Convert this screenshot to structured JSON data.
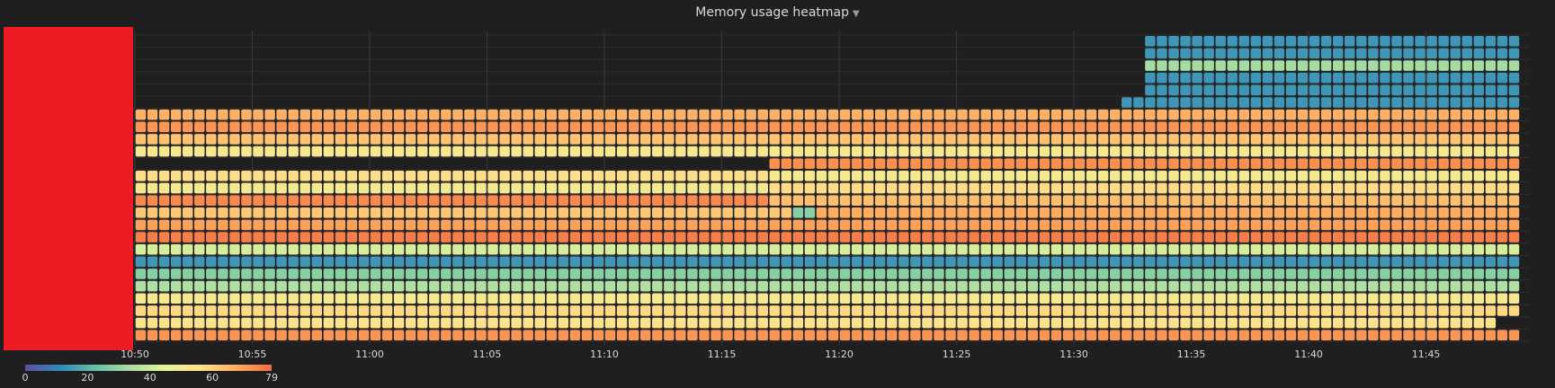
{
  "panel": {
    "title": "Memory usage heatmap",
    "caret_icon": "caret-down-icon"
  },
  "chart_data": {
    "type": "heatmap",
    "title": "Memory usage heatmap",
    "x_tick_labels": [
      "10:50",
      "10:55",
      "11:00",
      "11:05",
      "11:10",
      "11:15",
      "11:20",
      "11:25",
      "11:30",
      "11:35",
      "11:40",
      "11:45"
    ],
    "x_start": "10:50",
    "x_end": "11:49",
    "value_range": [
      0,
      79
    ],
    "color_scheme": "Spectral",
    "grid": true,
    "rows_from_bottom": [
      {
        "segments": [
          {
            "from": "10:50",
            "to": "11:49",
            "value": 72
          }
        ]
      },
      {
        "segments": [
          {
            "from": "10:50",
            "to": "11:48",
            "value": 55
          }
        ]
      },
      {
        "segments": [
          {
            "from": "10:50",
            "to": "11:49",
            "value": 58
          }
        ]
      },
      {
        "segments": [
          {
            "from": "10:50",
            "to": "11:49",
            "value": 52
          }
        ]
      },
      {
        "segments": [
          {
            "from": "10:50",
            "to": "11:49",
            "value": 35
          }
        ]
      },
      {
        "segments": [
          {
            "from": "10:50",
            "to": "11:49",
            "value": 28
          }
        ]
      },
      {
        "segments": [
          {
            "from": "10:50",
            "to": "11:49",
            "value": 14
          }
        ]
      },
      {
        "segments": [
          {
            "from": "10:50",
            "to": "11:49",
            "value": 42
          }
        ]
      },
      {
        "segments": [
          {
            "from": "10:50",
            "to": "11:49",
            "value": 76
          }
        ]
      },
      {
        "segments": [
          {
            "from": "10:50",
            "to": "11:49",
            "value": 70
          }
        ]
      },
      {
        "segments": [
          {
            "from": "10:50",
            "to": "11:18",
            "value": 62
          },
          {
            "from": "11:18",
            "to": "11:19",
            "value": 28
          },
          {
            "from": "11:19",
            "to": "11:49",
            "value": 68
          }
        ]
      },
      {
        "segments": [
          {
            "from": "10:50",
            "to": "11:17",
            "value": 74
          },
          {
            "from": "11:17",
            "to": "11:49",
            "value": 64
          }
        ]
      },
      {
        "segments": [
          {
            "from": "10:50",
            "to": "11:17",
            "value": 52
          },
          {
            "from": "11:17",
            "to": "11:49",
            "value": 57
          }
        ]
      },
      {
        "segments": [
          {
            "from": "10:50",
            "to": "11:17",
            "value": 57
          },
          {
            "from": "11:17",
            "to": "11:49",
            "value": 52
          }
        ]
      },
      {
        "segments": [
          {
            "from": "11:17",
            "to": "11:49",
            "value": 73
          }
        ]
      },
      {
        "segments": [
          {
            "from": "10:50",
            "to": "11:49",
            "value": 52
          }
        ]
      },
      {
        "segments": [
          {
            "from": "10:50",
            "to": "11:49",
            "value": 63
          }
        ]
      },
      {
        "segments": [
          {
            "from": "10:50",
            "to": "11:49",
            "value": 72
          }
        ]
      },
      {
        "segments": [
          {
            "from": "10:50",
            "to": "11:49",
            "value": 67
          }
        ]
      },
      {
        "segments": [
          {
            "from": "11:32",
            "to": "11:49",
            "value": 14
          }
        ]
      },
      {
        "segments": [
          {
            "from": "11:33",
            "to": "11:49",
            "value": 14
          }
        ]
      },
      {
        "segments": [
          {
            "from": "11:33",
            "to": "11:49",
            "value": 14
          }
        ]
      },
      {
        "segments": [
          {
            "from": "11:33",
            "to": "11:49",
            "value": 33
          }
        ]
      },
      {
        "segments": [
          {
            "from": "11:33",
            "to": "11:49",
            "value": 14
          }
        ]
      },
      {
        "segments": [
          {
            "from": "11:33",
            "to": "11:49",
            "value": 14
          }
        ]
      }
    ],
    "y_range": [
      0,
      25
    ],
    "legend": {
      "position": "bottom-left",
      "tick_labels": [
        "0",
        "20",
        "40",
        "60",
        "79"
      ]
    }
  }
}
